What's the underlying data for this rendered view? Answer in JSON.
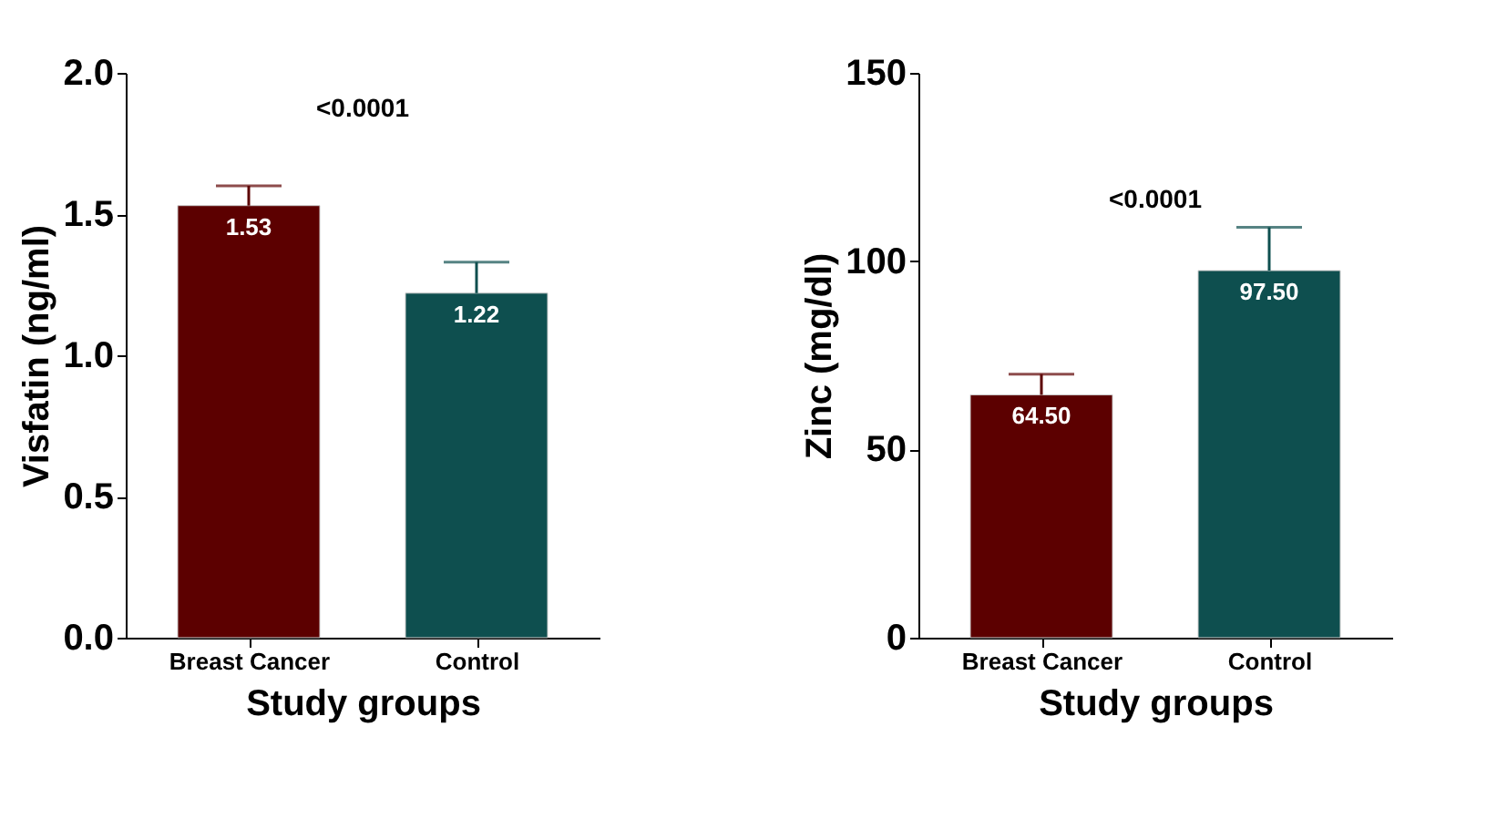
{
  "chart_data": [
    {
      "type": "bar",
      "categories": [
        "Breast Cancer",
        "Control"
      ],
      "values": [
        1.53,
        1.22
      ],
      "colors": [
        "#5c0000",
        "#0e4f4f"
      ],
      "errors": [
        [
          1.53,
          1.6
        ],
        [
          1.22,
          1.33
        ]
      ],
      "value_labels": [
        "1.53",
        "1.22"
      ],
      "xlabel": "Study groups",
      "ylabel": "Visfatin (ng/ml)",
      "ylim": [
        0,
        2
      ],
      "yticks": [
        {
          "value": 0,
          "label": "0.0"
        },
        {
          "value": 0.5,
          "label": "0.5"
        },
        {
          "value": 1,
          "label": "1.0"
        },
        {
          "value": 1.5,
          "label": "1.5"
        },
        {
          "value": 2,
          "label": "2.0"
        }
      ],
      "annotations": [
        "<0.0001"
      ],
      "grid": false
    },
    {
      "type": "bar",
      "categories": [
        "Breast Cancer",
        "Control"
      ],
      "values": [
        64.5,
        97.5
      ],
      "colors": [
        "#5c0000",
        "#0e4f4f"
      ],
      "errors": [
        [
          64.5,
          70
        ],
        [
          97.5,
          109
        ]
      ],
      "value_labels": [
        "64.50",
        "97.50"
      ],
      "xlabel": "Study groups",
      "ylabel": "Zinc (mg/dl)",
      "ylim": [
        0,
        150
      ],
      "yticks": [
        0,
        50,
        100,
        150
      ],
      "annotations": [
        "<0.0001"
      ],
      "grid": false
    }
  ]
}
